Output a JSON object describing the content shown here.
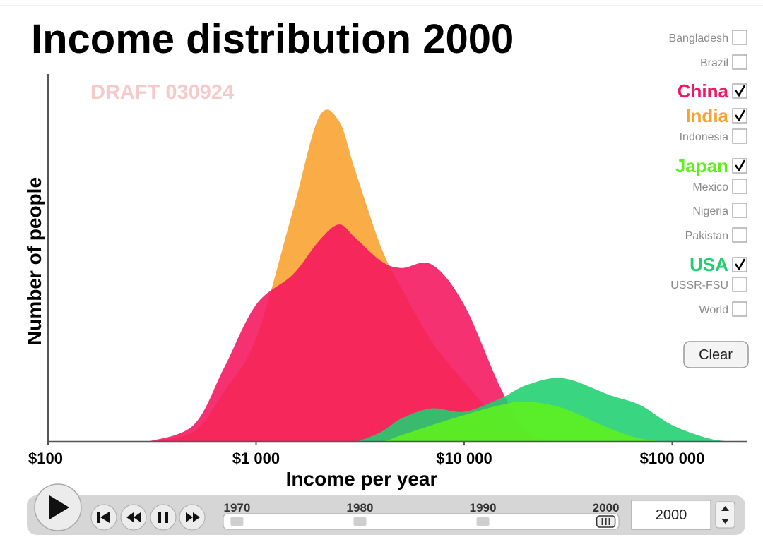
{
  "chart_data": {
    "type": "area",
    "title": "Income distribution 2000",
    "watermark": "DRAFT 030924",
    "ylabel": "Number of people",
    "xlabel": "Income per year",
    "xscale": "log",
    "xlim": [
      100,
      230000
    ],
    "ylim": [
      0,
      110
    ],
    "xticks": [
      {
        "value": 100,
        "label": "$100"
      },
      {
        "value": 1000,
        "label": "$1 000"
      },
      {
        "value": 10000,
        "label": "$10 000"
      },
      {
        "value": 100000,
        "label": "$100 000"
      }
    ],
    "x": [
      300,
      500,
      700,
      1000,
      1500,
      2000,
      2500,
      3000,
      4000,
      5000,
      7000,
      10000,
      15000,
      20000,
      30000,
      50000,
      70000,
      100000,
      150000,
      200000
    ],
    "series": [
      {
        "name": "India",
        "color": "#f9a12e",
        "values": [
          0,
          3,
          15,
          31,
          69,
          97,
          96,
          81,
          58,
          46,
          30,
          18,
          6,
          2,
          0,
          0,
          0,
          0,
          0,
          0
        ]
      },
      {
        "name": "China",
        "color": "#f5145e",
        "values": [
          0,
          5,
          22,
          41,
          50,
          60,
          65,
          61,
          54,
          52,
          53,
          41,
          16,
          3,
          0,
          0,
          0,
          0,
          0,
          0
        ]
      },
      {
        "name": "USA",
        "color": "#1fcf6f",
        "values": [
          0,
          0,
          0,
          0,
          0,
          0,
          0,
          0,
          3,
          7,
          10,
          9,
          13,
          17,
          19,
          14,
          11,
          5,
          1,
          0
        ]
      },
      {
        "name": "Japan",
        "color": "#5ef01c",
        "values": [
          0,
          0,
          0,
          0,
          0,
          0,
          0,
          0,
          0,
          2,
          5,
          8,
          11,
          12,
          10,
          4,
          1,
          0,
          0,
          0
        ]
      }
    ],
    "countries": [
      "Bangladesh",
      "Brazil",
      "Indonesia",
      "Mexico",
      "Nigeria",
      "Pakistan",
      "USSR-FSU",
      "World"
    ],
    "clear_button": "Clear",
    "timeline": {
      "lim": [
        1969,
        2001
      ],
      "ticks": [
        1970,
        1980,
        1990,
        2000
      ],
      "value": 2000
    }
  }
}
